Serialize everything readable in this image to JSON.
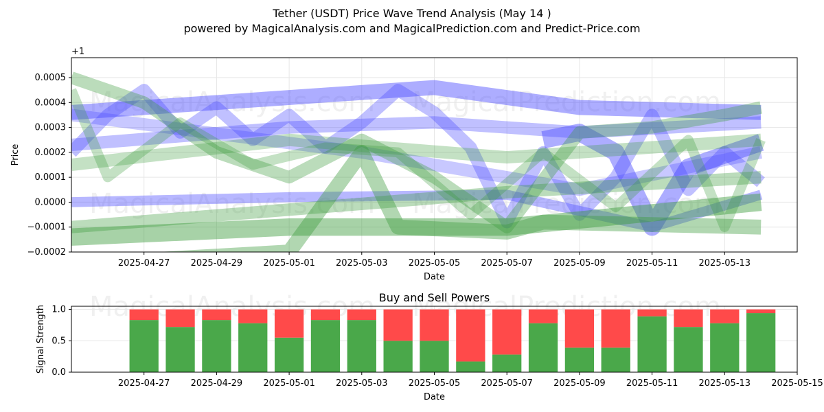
{
  "title": "Tether (USDT) Price Wave Trend Analysis (May 14 )",
  "subtitle": "powered by MagicalAnalysis.com and MagicalPrediction.com and Predict-Price.com",
  "watermarks": [
    "MagicalAnalysis.com",
    "MagicalPrediction.com"
  ],
  "colors": {
    "blue": "#4a4aff",
    "green": "#3c9c3c",
    "buy": "#4aa84a",
    "sell": "#ff4a4a"
  },
  "chart_data": [
    {
      "type": "area",
      "title": "",
      "xlabel": "Date",
      "ylabel": "Price",
      "offset_label": "+1",
      "xlim": [
        "2025-04-25",
        "2025-05-15"
      ],
      "ylim": [
        -0.0002,
        0.00058
      ],
      "xticks": [
        "2025-04-27",
        "2025-04-29",
        "2025-05-01",
        "2025-05-03",
        "2025-05-05",
        "2025-05-07",
        "2025-05-09",
        "2025-05-11",
        "2025-05-13"
      ],
      "yticks": [
        -0.0002,
        -0.0001,
        0.0,
        0.0001,
        0.0002,
        0.0003,
        0.0004,
        0.0005
      ],
      "ytick_labels": [
        "−0.0002",
        "−0.0001",
        "0.0000",
        "0.0001",
        "0.0002",
        "0.0003",
        "0.0004",
        "0.0005"
      ],
      "grid": true,
      "series": [
        {
          "color": "blue",
          "opacity": 0.45,
          "width": 6e-05,
          "x": [
            "2025-04-25",
            "2025-05-05",
            "2025-05-09",
            "2025-05-14"
          ],
          "y": [
            0.00036,
            0.00046,
            0.00038,
            0.00036
          ]
        },
        {
          "color": "blue",
          "opacity": 0.35,
          "width": 5e-05,
          "x": [
            "2025-04-25",
            "2025-05-01",
            "2025-05-05",
            "2025-05-09",
            "2025-05-14"
          ],
          "y": [
            0.00023,
            0.0003,
            0.00032,
            0.00028,
            0.00032
          ]
        },
        {
          "color": "blue",
          "opacity": 0.45,
          "width": 7e-05,
          "x": [
            "2025-05-08",
            "2025-05-09",
            "2025-05-10",
            "2025-05-11",
            "2025-05-12",
            "2025-05-14"
          ],
          "y": [
            0.00025,
            0.00028,
            0.0002,
            -0.0001,
            0.00014,
            0.00024
          ]
        },
        {
          "color": "blue",
          "opacity": 0.35,
          "width": 5e-05,
          "x": [
            "2025-04-25",
            "2025-04-26",
            "2025-04-27",
            "2025-04-28",
            "2025-04-29",
            "2025-04-30",
            "2025-05-01",
            "2025-05-02",
            "2025-05-03",
            "2025-05-04",
            "2025-05-05",
            "2025-05-06",
            "2025-05-07",
            "2025-05-08",
            "2025-05-09",
            "2025-05-10",
            "2025-05-11",
            "2025-05-12",
            "2025-05-13",
            "2025-05-14"
          ],
          "y": [
            0.0002,
            0.00035,
            0.00045,
            0.00028,
            0.00038,
            0.00025,
            0.00035,
            0.00022,
            0.00032,
            0.00045,
            0.00036,
            0.00022,
            -8e-05,
            0.0002,
            -5e-05,
            0.0001,
            0.00035,
            5e-05,
            0.0002,
            8e-05
          ]
        },
        {
          "color": "blue",
          "opacity": 0.3,
          "width": 5e-05,
          "x": [
            "2025-04-25",
            "2025-05-03",
            "2025-05-09",
            "2025-05-14"
          ],
          "y": [
            0.00035,
            0.0002,
            5e-05,
            0.0002
          ]
        },
        {
          "color": "blue",
          "opacity": 0.4,
          "width": 4e-05,
          "x": [
            "2025-04-25",
            "2025-05-01",
            "2025-05-07",
            "2025-05-11",
            "2025-05-14"
          ],
          "y": [
            0.0,
            2e-05,
            3e-05,
            -0.0001,
            3e-05
          ]
        },
        {
          "color": "green",
          "opacity": 0.45,
          "width": 7e-05,
          "x": [
            "2025-04-25",
            "2025-05-01",
            "2025-05-07",
            "2025-05-14"
          ],
          "y": [
            -0.00014,
            -0.0001,
            -0.0001,
            0.0
          ]
        },
        {
          "color": "green",
          "opacity": 0.35,
          "width": 5e-05,
          "x": [
            "2025-04-25",
            "2025-05-01",
            "2025-05-07",
            "2025-05-14"
          ],
          "y": [
            -0.0001,
            -3e-05,
            4e-05,
            0.0001
          ]
        },
        {
          "color": "green",
          "opacity": 0.4,
          "width": 6e-05,
          "x": [
            "2025-04-25",
            "2025-05-01",
            "2025-05-03",
            "2025-05-04",
            "2025-05-07",
            "2025-05-08",
            "2025-05-14"
          ],
          "y": [
            -0.00025,
            -0.0002,
            0.0002,
            -0.0001,
            -0.00012,
            -8e-05,
            -0.0001
          ]
        },
        {
          "color": "green",
          "opacity": 0.35,
          "width": 5e-05,
          "x": [
            "2025-04-25",
            "2025-04-27",
            "2025-04-29",
            "2025-05-01",
            "2025-05-03",
            "2025-05-05",
            "2025-05-07",
            "2025-05-09",
            "2025-05-11",
            "2025-05-13",
            "2025-05-14"
          ],
          "y": [
            0.0005,
            0.0004,
            0.0002,
            0.0001,
            0.00025,
            0.0001,
            -0.0001,
            0.00028,
            0.0003,
            0.00035,
            0.00038
          ]
        },
        {
          "color": "green",
          "opacity": 0.3,
          "width": 4e-05,
          "x": [
            "2025-04-25",
            "2025-04-26",
            "2025-04-28",
            "2025-04-30",
            "2025-05-02",
            "2025-05-04",
            "2025-05-06",
            "2025-05-08",
            "2025-05-10",
            "2025-05-12",
            "2025-05-13",
            "2025-05-14"
          ],
          "y": [
            0.00045,
            0.0001,
            0.00032,
            0.00015,
            0.00022,
            0.0002,
            -5e-05,
            0.0002,
            -2e-05,
            0.00025,
            -0.0001,
            0.00025
          ]
        },
        {
          "color": "green",
          "opacity": 0.3,
          "width": 5e-05,
          "x": [
            "2025-04-25",
            "2025-05-01",
            "2025-05-07",
            "2025-05-14"
          ],
          "y": [
            0.00015,
            0.00025,
            0.00018,
            0.00025
          ]
        }
      ]
    },
    {
      "type": "bar",
      "title": "Buy and Sell Powers",
      "xlabel": "Date",
      "ylabel": "Signal Strength",
      "xlim": [
        "2025-04-25",
        "2025-05-15"
      ],
      "ylim": [
        0,
        1.05
      ],
      "xticks": [
        "2025-04-27",
        "2025-04-29",
        "2025-05-01",
        "2025-05-03",
        "2025-05-05",
        "2025-05-07",
        "2025-05-09",
        "2025-05-11",
        "2025-05-13",
        "2025-05-15"
      ],
      "yticks": [
        0.0,
        0.5,
        1.0
      ],
      "ytick_labels": [
        "0.0",
        "0.5",
        "1.0"
      ],
      "grid": true,
      "categories": [
        "2025-04-27",
        "2025-04-28",
        "2025-04-29",
        "2025-04-30",
        "2025-05-01",
        "2025-05-02",
        "2025-05-03",
        "2025-05-04",
        "2025-05-05",
        "2025-05-06",
        "2025-05-07",
        "2025-05-08",
        "2025-05-09",
        "2025-05-10",
        "2025-05-11",
        "2025-05-12",
        "2025-05-13",
        "2025-05-14"
      ],
      "series": [
        {
          "color": "buy",
          "values": [
            0.83,
            0.72,
            0.83,
            0.78,
            0.55,
            0.83,
            0.83,
            0.5,
            0.5,
            0.17,
            0.28,
            0.78,
            0.39,
            0.39,
            0.89,
            0.72,
            0.78,
            0.94
          ]
        },
        {
          "color": "sell",
          "values": [
            0.17,
            0.28,
            0.17,
            0.22,
            0.45,
            0.17,
            0.17,
            0.5,
            0.5,
            0.83,
            0.72,
            0.22,
            0.61,
            0.61,
            0.11,
            0.28,
            0.22,
            0.06
          ]
        }
      ]
    }
  ]
}
